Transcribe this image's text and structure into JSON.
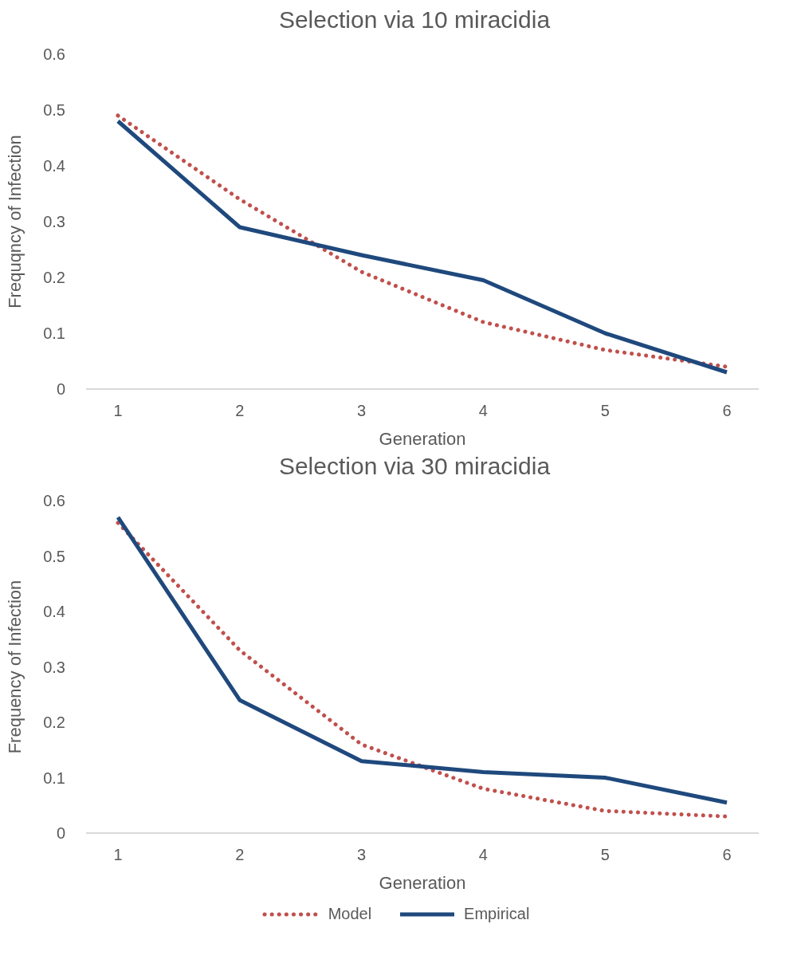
{
  "chart_data": [
    {
      "type": "line",
      "title": "Selection via 10 miracidia",
      "xlabel": "Generation",
      "ylabel": "Frequqncy of Infection",
      "categories": [
        "1",
        "2",
        "3",
        "4",
        "5",
        "6"
      ],
      "ylim": [
        0,
        0.6
      ],
      "yticks": [
        {
          "value": 0,
          "label": "0"
        },
        0.1,
        0.2,
        0.3,
        0.4,
        0.5,
        0.6
      ],
      "grid": false,
      "legend": false,
      "marker": "none",
      "series": [
        {
          "color": "#c0504d",
          "line_style": "dotted",
          "values": [
            0.49,
            0.34,
            0.21,
            0.12,
            0.07,
            0.04
          ]
        },
        {
          "color": "#1f497d",
          "line_style": "solid",
          "values": [
            0.48,
            0.29,
            0.24,
            0.195,
            0.1,
            0.03
          ]
        }
      ]
    },
    {
      "type": "line",
      "title": "Selection via 30 miracidia",
      "xlabel": "Generation",
      "ylabel": "Frequency of Infection",
      "categories": [
        "1",
        "2",
        "3",
        "4",
        "5",
        "6"
      ],
      "ylim": [
        0,
        0.6
      ],
      "yticks": [
        {
          "value": 0,
          "label": "0"
        },
        0.1,
        0.2,
        0.3,
        0.4,
        0.5,
        0.6
      ],
      "grid": false,
      "legend": "bottom",
      "marker": "none",
      "series": [
        {
          "name": "Model",
          "color": "#c0504d",
          "line_style": "dotted",
          "values": [
            0.56,
            0.33,
            0.16,
            0.08,
            0.04,
            0.03
          ]
        },
        {
          "name": "Empirical",
          "color": "#1f497d",
          "line_style": "solid",
          "values": [
            0.57,
            0.24,
            0.13,
            0.11,
            0.1,
            0.055
          ]
        }
      ]
    }
  ]
}
